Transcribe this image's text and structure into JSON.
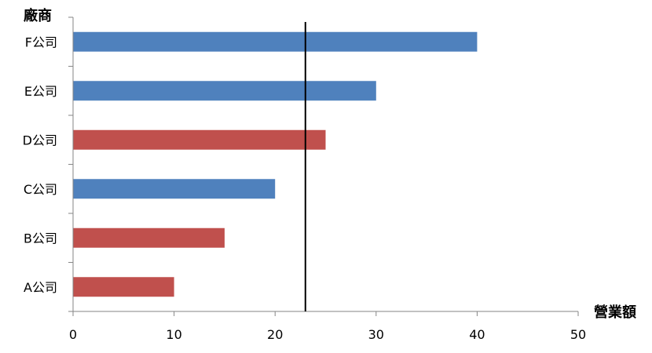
{
  "chart_data": {
    "type": "bar",
    "orientation": "horizontal",
    "categories": [
      "A公司",
      "B公司",
      "C公司",
      "D公司",
      "E公司",
      "F公司"
    ],
    "values": [
      10,
      15,
      20,
      25,
      30,
      40
    ],
    "bar_colors": [
      "#c0504d",
      "#c0504d",
      "#4f81bd",
      "#c0504d",
      "#4f81bd",
      "#4f81bd"
    ],
    "xlabel": "營業額",
    "ylabel": "廠商",
    "xlim": [
      0,
      50
    ],
    "xticks": [
      "0",
      "10",
      "20",
      "30",
      "40",
      "50"
    ],
    "reference_line_x": 23,
    "grid": false,
    "legend": "none"
  },
  "colors": {
    "blue": "#4f81bd",
    "red": "#c0504d",
    "axis": "#868686",
    "reference_line": "#000000"
  }
}
